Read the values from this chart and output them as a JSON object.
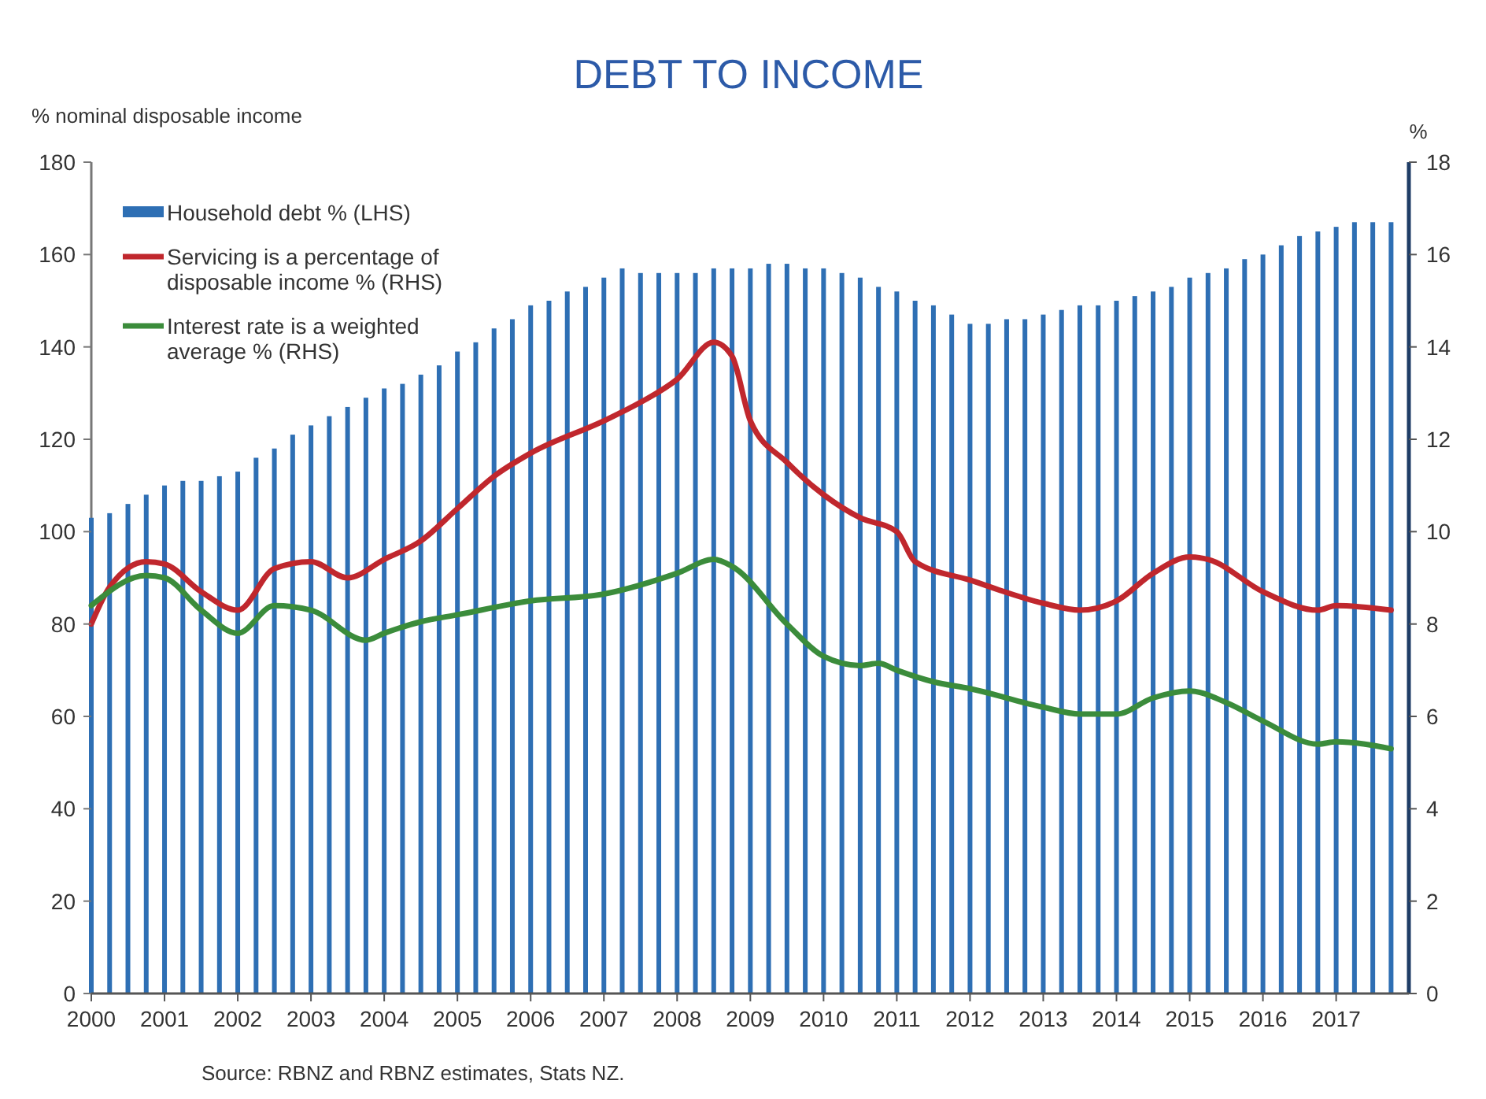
{
  "chart_data": {
    "type": "bar",
    "title": "DEBT TO INCOME",
    "ylabel": "% nominal disposable income",
    "y2label": "%",
    "x": [
      2000,
      2000.25,
      2000.5,
      2000.75,
      2001,
      2001.25,
      2001.5,
      2001.75,
      2002,
      2002.25,
      2002.5,
      2002.75,
      2003,
      2003.25,
      2003.5,
      2003.75,
      2004,
      2004.25,
      2004.5,
      2004.75,
      2005,
      2005.25,
      2005.5,
      2005.75,
      2006,
      2006.25,
      2006.5,
      2006.75,
      2007,
      2007.25,
      2007.5,
      2007.75,
      2008,
      2008.25,
      2008.5,
      2008.75,
      2009,
      2009.25,
      2009.5,
      2009.75,
      2010,
      2010.25,
      2010.5,
      2010.75,
      2011,
      2011.25,
      2011.5,
      2011.75,
      2012,
      2012.25,
      2012.5,
      2012.75,
      2013,
      2013.25,
      2013.5,
      2013.75,
      2014,
      2014.25,
      2014.5,
      2014.75,
      2015,
      2015.25,
      2015.5,
      2015.75,
      2016,
      2016.25,
      2016.5,
      2016.75,
      2017,
      2017.25,
      2017.5,
      2017.75
    ],
    "series": [
      {
        "name": "Household debt % (LHS)",
        "color": "#2e6fb4",
        "values": [
          103,
          104,
          106,
          108,
          110,
          111,
          111,
          112,
          113,
          116,
          118,
          121,
          123,
          125,
          127,
          129,
          131,
          132,
          134,
          136,
          139,
          141,
          144,
          146,
          149,
          150,
          152,
          153,
          155,
          157,
          156,
          156,
          156,
          156,
          157,
          157,
          157,
          158,
          158,
          157,
          157,
          156,
          155,
          153,
          152,
          150,
          149,
          147,
          145,
          145,
          146,
          146,
          147,
          148,
          149,
          149,
          150,
          151,
          152,
          153,
          155,
          156,
          157,
          159,
          160,
          162,
          164,
          165,
          166,
          167,
          167,
          167
        ]
      },
      {
        "name": "Servicing is a percentage of disposable income % (RHS)",
        "type": "line",
        "axis": "y2",
        "color": "#c0272d",
        "x": [
          2000,
          2000.25,
          2000.75,
          2001,
          2001.5,
          2002,
          2002.5,
          2003,
          2003.5,
          2004,
          2004.5,
          2005,
          2005.5,
          2006,
          2007,
          2007.5,
          2008,
          2008.5,
          2008.75,
          2009,
          2009.5,
          2010,
          2010.5,
          2011,
          2011.25,
          2012,
          2013,
          2013.5,
          2014,
          2014.5,
          2015,
          2015.25,
          2016,
          2016.75,
          2017,
          2017.75
        ],
        "values": [
          8.0,
          8.8,
          9.35,
          9.3,
          8.7,
          8.3,
          9.2,
          9.35,
          9.0,
          9.4,
          9.8,
          10.5,
          11.2,
          11.7,
          12.4,
          12.8,
          13.3,
          14.1,
          13.8,
          12.4,
          11.5,
          10.8,
          10.3,
          10.0,
          9.35,
          8.95,
          8.45,
          8.3,
          8.5,
          9.1,
          9.45,
          9.4,
          8.7,
          8.3,
          8.4,
          8.3
        ]
      },
      {
        "name": "Interest rate is a weighted average % (RHS)",
        "type": "line",
        "axis": "y2",
        "color": "#3b8c3b",
        "x": [
          2000,
          2000.75,
          2001,
          2001.5,
          2002,
          2002.5,
          2003,
          2003.75,
          2004,
          2004.5,
          2005,
          2006,
          2007,
          2008,
          2008.5,
          2008.75,
          2009.5,
          2010,
          2010.5,
          2010.75,
          2011,
          2011.5,
          2012,
          2013,
          2013.5,
          2014,
          2014.5,
          2015,
          2015.5,
          2016,
          2016.75,
          2017,
          2017.75
        ],
        "values": [
          8.4,
          9.05,
          9.0,
          8.3,
          7.8,
          8.4,
          8.3,
          7.65,
          7.8,
          8.05,
          8.2,
          8.5,
          8.65,
          9.1,
          9.4,
          9.25,
          8.0,
          7.3,
          7.1,
          7.15,
          7.0,
          6.75,
          6.6,
          6.2,
          6.05,
          6.05,
          6.4,
          6.55,
          6.3,
          5.9,
          5.4,
          5.45,
          5.3
        ]
      }
    ],
    "xlim": [
      2000,
      2017.95
    ],
    "xticks": [
      2000,
      2001,
      2002,
      2003,
      2004,
      2005,
      2006,
      2007,
      2008,
      2009,
      2010,
      2011,
      2012,
      2013,
      2014,
      2015,
      2016,
      2017
    ],
    "ylim": [
      0,
      180
    ],
    "yticks": [
      0,
      20,
      40,
      60,
      80,
      100,
      120,
      140,
      160,
      180
    ],
    "y2lim": [
      0,
      18
    ],
    "y2ticks": [
      0,
      2,
      4,
      6,
      8,
      10,
      12,
      14,
      16,
      18
    ],
    "grid": false,
    "legend": "top left",
    "annotations": [
      "Source: RBNZ and RBNZ estimates, Stats NZ."
    ]
  }
}
